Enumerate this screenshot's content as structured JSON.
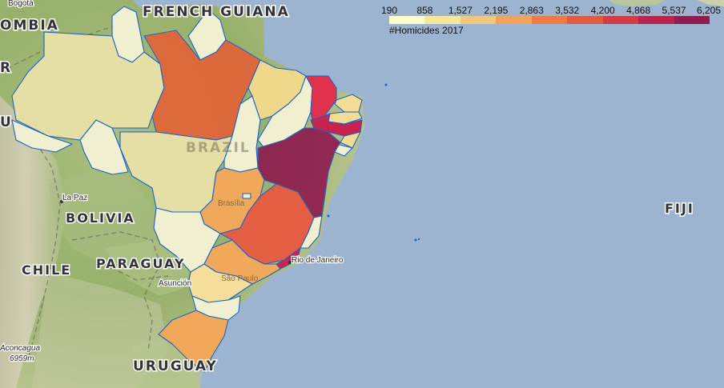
{
  "map": {
    "country_labels": {
      "french_guiana": "FRENCH GUIANA",
      "colombia": "OMBIA",
      "bolivia": "BOLIVIA",
      "chile": "CHILE",
      "paraguay": "PARAGUAY",
      "uruguay": "URUGUAY",
      "fiji": "FIJI",
      "brazil": "BRAZIL",
      "peru_fragment": "U",
      "ecuador_fragment": "R"
    },
    "city_labels": {
      "bogota": "Bogotá",
      "la_paz": "La Paz",
      "asuncion": "Asunción",
      "brasilia": "Brasília",
      "sao_paulo": "São Paulo",
      "rio": "Rio de Janeiro",
      "aconcagua": "Aconcagua",
      "aconcagua_height": "6959m"
    },
    "colors": {
      "ocean": "#9cb4cf",
      "state_border": "#1c63c8"
    }
  },
  "legend": {
    "title": "#Homicides 2017",
    "ticks": [
      "190",
      "858",
      "1,527",
      "2,195",
      "2,863",
      "3,532",
      "4,200",
      "4,868",
      "5,537",
      "6,205"
    ],
    "colors": [
      "#ffffcc",
      "#f7e79a",
      "#f2c67c",
      "#f2a25b",
      "#ec7a46",
      "#e15a42",
      "#d33b47",
      "#b9244d",
      "#8f1d4e"
    ]
  }
}
